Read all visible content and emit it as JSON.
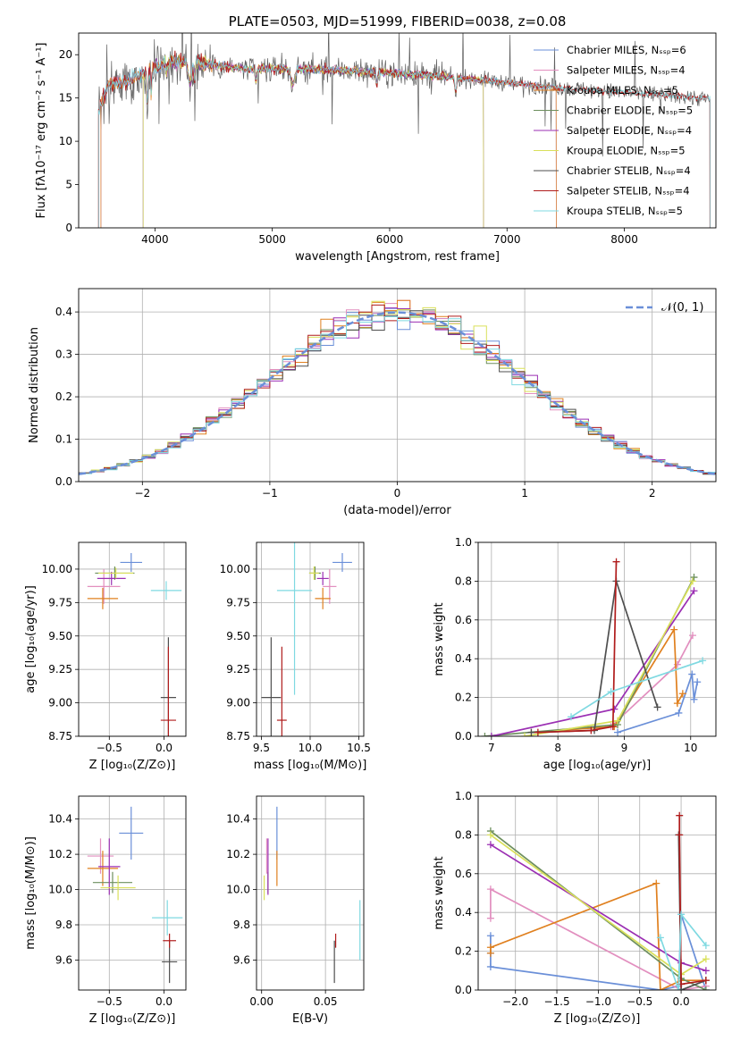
{
  "colors": {
    "series": [
      "#6a8fd8",
      "#e28fbf",
      "#e0801f",
      "#6d8f5e",
      "#9b2fb3",
      "#d9e05a",
      "#4f4f4f",
      "#b01c1c",
      "#7fd9e1"
    ],
    "grid": "#b0b0b0",
    "gauss": "#6a8fd8"
  },
  "chart_data": [
    {
      "id": "spectrum",
      "type": "line",
      "title": "PLATE=0503, MJD=51999, FIBERID=0038, z=0.08",
      "xlabel": "wavelength [Angstrom, rest frame]",
      "ylabel": "Flux [fλ10⁻¹⁷ erg cm⁻² s⁻¹ A⁻¹]",
      "xlim": [
        3350,
        8780
      ],
      "ylim": [
        0,
        22.5
      ],
      "xticks": [
        4000,
        5000,
        6000,
        7000,
        8000
      ],
      "yticks": [
        0,
        5,
        10,
        15,
        20
      ],
      "grid": false,
      "legend_position": "upper-right",
      "continuum_anchors": [
        [
          3520,
          13.2
        ],
        [
          3600,
          16.5
        ],
        [
          3800,
          17.2
        ],
        [
          3950,
          18.2
        ],
        [
          4100,
          19.2
        ],
        [
          4400,
          19.0
        ],
        [
          4800,
          18.3
        ],
        [
          5200,
          18.4
        ],
        [
          5600,
          18.2
        ],
        [
          6000,
          17.9
        ],
        [
          6400,
          17.5
        ],
        [
          6700,
          17.2
        ],
        [
          7200,
          16.5
        ],
        [
          7600,
          16.0
        ],
        [
          8000,
          15.6
        ],
        [
          8400,
          15.3
        ],
        [
          8730,
          14.9
        ]
      ],
      "series": [
        {
          "name": "Chabrier MILES, Nₛₛₚ=6",
          "x_range": [
            3540,
            7420
          ]
        },
        {
          "name": "Salpeter MILES, Nₛₛₚ=4",
          "x_range": [
            3540,
            7420
          ]
        },
        {
          "name": "Kroupa MILES, Nₛₛₚ=5",
          "x_range": [
            3540,
            7420
          ]
        },
        {
          "name": "Chabrier ELODIE, Nₛₛₚ=5",
          "x_range": [
            3900,
            6800
          ]
        },
        {
          "name": "Salpeter ELODIE, Nₛₛₚ=4",
          "x_range": [
            3900,
            6800
          ]
        },
        {
          "name": "Kroupa ELODIE, Nₛₛₚ=5",
          "x_range": [
            3900,
            6800
          ]
        },
        {
          "name": "Chabrier STELIB, Nₛₛₚ=4",
          "x_range": [
            3520,
            8730
          ]
        },
        {
          "name": "Salpeter STELIB, Nₛₛₚ=4",
          "x_range": [
            3520,
            8730
          ]
        },
        {
          "name": "Kroupa STELIB, Nₛₛₚ=5",
          "x_range": [
            3520,
            8730
          ]
        }
      ]
    },
    {
      "id": "residuals",
      "type": "histogram",
      "xlabel": "(data-model)/error",
      "ylabel": "Normed distribution",
      "xlim": [
        -2.5,
        2.5
      ],
      "ylim": [
        0,
        0.455
      ],
      "xticks": [
        -2,
        -1,
        0,
        1,
        2
      ],
      "yticks": [
        0.0,
        0.1,
        0.2,
        0.3,
        0.4
      ],
      "grid": true,
      "legend_position": "upper-right",
      "legend": "𝒩(0, 1)",
      "bin_width": 0.1,
      "bin_start": -2.5
    },
    {
      "id": "age-vs-Z",
      "type": "errorbar",
      "xlabel": "Z [log₁₀(Z/Z⊙)]",
      "ylabel": "age  [log₁₀(age/yr)]",
      "xlim": [
        -0.78,
        0.2
      ],
      "ylim": [
        8.75,
        10.2
      ],
      "xticks": [
        -0.5,
        0.0
      ],
      "yticks": [
        8.75,
        9.0,
        9.25,
        9.5,
        9.75,
        10.0
      ],
      "grid": true,
      "points": [
        {
          "series": 0,
          "x": -0.3,
          "y": 10.05,
          "xerr": 0.1,
          "yerr": 0.07
        },
        {
          "series": 1,
          "x": -0.55,
          "y": 9.87,
          "xerr": 0.15,
          "yerr": 0.13
        },
        {
          "series": 2,
          "x": -0.56,
          "y": 9.78,
          "xerr": 0.14,
          "yerr": 0.08
        },
        {
          "series": 3,
          "x": -0.45,
          "y": 9.97,
          "xerr": 0.18,
          "yerr": 0.05
        },
        {
          "series": 4,
          "x": -0.48,
          "y": 9.93,
          "xerr": 0.13,
          "yerr": 0.05
        },
        {
          "series": 5,
          "x": -0.44,
          "y": 9.97,
          "xerr": 0.16,
          "yerr": 0.04
        },
        {
          "series": 6,
          "x": 0.04,
          "y": 9.04,
          "xerr": 0.07,
          "yerr": 0.45
        },
        {
          "series": 7,
          "x": 0.04,
          "y": 8.87,
          "xerr": 0.07,
          "yerr": 0.55
        },
        {
          "series": 8,
          "x": 0.02,
          "y": 9.84,
          "xerr": 0.14,
          "yerr": 0.07
        }
      ]
    },
    {
      "id": "age-vs-mass",
      "type": "errorbar",
      "xlabel": "mass [log₁₀(M/M⊙)]",
      "ylabel": "",
      "xlim": [
        9.45,
        10.55
      ],
      "ylim": [
        8.75,
        10.2
      ],
      "xticks": [
        9.5,
        10.0,
        10.5
      ],
      "yticks": [
        8.75,
        9.0,
        9.25,
        9.5,
        9.75,
        10.0
      ],
      "grid": true,
      "points": [
        {
          "series": 0,
          "x": 10.33,
          "y": 10.05,
          "xerr": 0.1,
          "yerr": 0.07
        },
        {
          "series": 1,
          "x": 10.2,
          "y": 9.87,
          "xerr": 0.07,
          "yerr": 0.13
        },
        {
          "series": 2,
          "x": 10.13,
          "y": 9.78,
          "xerr": 0.08,
          "yerr": 0.08
        },
        {
          "series": 3,
          "x": 10.05,
          "y": 9.97,
          "xerr": 0.06,
          "yerr": 0.05
        },
        {
          "series": 4,
          "x": 10.13,
          "y": 9.93,
          "xerr": 0.06,
          "yerr": 0.05
        },
        {
          "series": 5,
          "x": 10.04,
          "y": 9.97,
          "xerr": 0.05,
          "yerr": 0.05
        },
        {
          "series": 6,
          "x": 9.6,
          "y": 9.04,
          "xerr": 0.1,
          "yerr": 0.45
        },
        {
          "series": 7,
          "x": 9.71,
          "y": 8.87,
          "xerr": 0.05,
          "yerr": 0.55
        },
        {
          "series": 8,
          "x": 9.84,
          "y": 9.84,
          "xerr": 0.18,
          "yerr": 0.78
        }
      ]
    },
    {
      "id": "weight-vs-age",
      "type": "line",
      "xlabel": "age  [log₁₀(age/yr)]",
      "ylabel": "mass weight",
      "xlim": [
        6.8,
        10.38
      ],
      "ylim": [
        0,
        1.0
      ],
      "xticks": [
        7,
        8,
        9,
        10
      ],
      "yticks": [
        0.0,
        0.2,
        0.4,
        0.6,
        0.8,
        1.0
      ],
      "grid": true,
      "series": [
        {
          "series": 0,
          "points": [
            [
              8.9,
              0.02
            ],
            [
              9.82,
              0.12
            ],
            [
              10.02,
              0.32
            ],
            [
              10.05,
              0.19
            ],
            [
              10.1,
              0.28
            ]
          ]
        },
        {
          "series": 1,
          "points": [
            [
              8.8,
              0.05
            ],
            [
              9.8,
              0.37
            ],
            [
              10.03,
              0.52
            ]
          ]
        },
        {
          "series": 2,
          "points": [
            [
              7.6,
              0.02
            ],
            [
              8.85,
              0.05
            ],
            [
              9.75,
              0.55
            ],
            [
              9.8,
              0.17
            ],
            [
              9.88,
              0.22
            ]
          ]
        },
        {
          "series": 3,
          "points": [
            [
              6.9,
              0.0
            ],
            [
              8.9,
              0.06
            ],
            [
              10.05,
              0.82
            ]
          ]
        },
        {
          "series": 4,
          "points": [
            [
              7.0,
              0.0
            ],
            [
              8.85,
              0.14
            ],
            [
              10.05,
              0.75
            ]
          ]
        },
        {
          "series": 5,
          "points": [
            [
              7.5,
              0.0
            ],
            [
              8.9,
              0.08
            ],
            [
              10.03,
              0.8
            ]
          ]
        },
        {
          "series": 6,
          "points": [
            [
              7.6,
              0.02
            ],
            [
              8.55,
              0.03
            ],
            [
              8.88,
              0.8
            ],
            [
              9.5,
              0.15
            ]
          ]
        },
        {
          "series": 7,
          "points": [
            [
              7.7,
              0.02
            ],
            [
              8.5,
              0.03
            ],
            [
              8.83,
              0.05
            ],
            [
              8.88,
              0.9
            ]
          ]
        },
        {
          "series": 8,
          "points": [
            [
              8.2,
              0.1
            ],
            [
              8.8,
              0.23
            ],
            [
              10.18,
              0.39
            ]
          ]
        }
      ]
    },
    {
      "id": "mass-vs-Z",
      "type": "errorbar",
      "xlabel": "Z [log₁₀(Z/Z⊙)]",
      "ylabel": "mass [log₁₀(M/M⊙)]",
      "xlim": [
        -0.78,
        0.2
      ],
      "ylim": [
        9.43,
        10.53
      ],
      "xticks": [
        -0.5,
        0.0
      ],
      "yticks": [
        9.6,
        9.8,
        10.0,
        10.2,
        10.4
      ],
      "grid": true,
      "points": [
        {
          "series": 0,
          "x": -0.3,
          "y": 10.32,
          "xerr": 0.11,
          "yerr": 0.15
        },
        {
          "series": 1,
          "x": -0.58,
          "y": 10.19,
          "xerr": 0.12,
          "yerr": 0.1
        },
        {
          "series": 2,
          "x": -0.56,
          "y": 10.12,
          "xerr": 0.14,
          "yerr": 0.1
        },
        {
          "series": 3,
          "x": -0.47,
          "y": 10.04,
          "xerr": 0.18,
          "yerr": 0.06
        },
        {
          "series": 4,
          "x": -0.5,
          "y": 10.13,
          "xerr": 0.1,
          "yerr": 0.16
        },
        {
          "series": 5,
          "x": -0.42,
          "y": 10.01,
          "xerr": 0.16,
          "yerr": 0.07
        },
        {
          "series": 6,
          "x": 0.05,
          "y": 9.59,
          "xerr": 0.07,
          "yerr": 0.12
        },
        {
          "series": 7,
          "x": 0.05,
          "y": 9.71,
          "xerr": 0.06,
          "yerr": 0.04
        },
        {
          "series": 8,
          "x": 0.03,
          "y": 9.84,
          "xerr": 0.14,
          "yerr": 0.1
        }
      ]
    },
    {
      "id": "mass-vs-EBV",
      "type": "errorbar",
      "xlabel": "E(B-V)",
      "ylabel": "",
      "xlim": [
        -0.004,
        0.08
      ],
      "ylim": [
        9.43,
        10.53
      ],
      "xticks": [
        0.0,
        0.05
      ],
      "yticks": [
        9.6,
        9.8,
        10.0,
        10.2,
        10.4
      ],
      "grid": true,
      "points": [
        {
          "series": 0,
          "x": 0.012,
          "y": 10.32,
          "xerr": 0,
          "yerr": 0.15
        },
        {
          "series": 1,
          "x": 0.004,
          "y": 10.19,
          "xerr": 0,
          "yerr": 0.1
        },
        {
          "series": 2,
          "x": 0.012,
          "y": 10.12,
          "xerr": 0,
          "yerr": 0.1
        },
        {
          "series": 3,
          "x": 0.005,
          "y": 10.04,
          "xerr": 0,
          "yerr": 0.06
        },
        {
          "series": 4,
          "x": 0.005,
          "y": 10.13,
          "xerr": 0,
          "yerr": 0.16
        },
        {
          "series": 5,
          "x": 0.002,
          "y": 10.01,
          "xerr": 0,
          "yerr": 0.07
        },
        {
          "series": 6,
          "x": 0.057,
          "y": 9.59,
          "xerr": 0,
          "yerr": 0.12
        },
        {
          "series": 7,
          "x": 0.058,
          "y": 9.71,
          "xerr": 0,
          "yerr": 0.04
        },
        {
          "series": 8,
          "x": 0.077,
          "y": 9.77,
          "xerr": 0,
          "yerr": 0.17
        }
      ]
    },
    {
      "id": "weight-vs-Z",
      "type": "line",
      "xlabel": "Z [log₁₀(Z/Z⊙)]",
      "ylabel": "mass weight",
      "xlim": [
        -2.45,
        0.42
      ],
      "ylim": [
        0,
        1.0
      ],
      "xticks": [
        -2.0,
        -1.5,
        -1.0,
        -0.5,
        0.0
      ],
      "yticks": [
        0.0,
        0.2,
        0.4,
        0.6,
        0.8,
        1.0
      ],
      "grid": true,
      "series": [
        {
          "series": 0,
          "points": [
            [
              -2.3,
              0.19
            ],
            [
              -2.3,
              0.28
            ],
            [
              -2.3,
              0.12
            ],
            [
              -0.25,
              0.0
            ],
            [
              -0.03,
              0.02
            ],
            [
              0.0,
              0.39
            ],
            [
              0.3,
              0.0
            ]
          ]
        },
        {
          "series": 1,
          "points": [
            [
              -2.3,
              0.37
            ],
            [
              -2.3,
              0.52
            ],
            [
              0.0,
              0.0
            ],
            [
              0.3,
              0.02
            ]
          ]
        },
        {
          "series": 2,
          "points": [
            [
              -2.3,
              0.19
            ],
            [
              -2.3,
              0.22
            ],
            [
              -0.3,
              0.55
            ],
            [
              -0.25,
              0.0
            ],
            [
              0.0,
              0.05
            ],
            [
              0.3,
              0.05
            ]
          ]
        },
        {
          "series": 3,
          "points": [
            [
              -2.3,
              0.82
            ],
            [
              0.0,
              0.06
            ],
            [
              0.3,
              0.0
            ]
          ]
        },
        {
          "series": 4,
          "points": [
            [
              -2.3,
              0.75
            ],
            [
              0.0,
              0.14
            ],
            [
              0.3,
              0.1
            ]
          ]
        },
        {
          "series": 5,
          "points": [
            [
              -2.3,
              0.8
            ],
            [
              0.0,
              0.08
            ],
            [
              0.3,
              0.16
            ]
          ]
        },
        {
          "series": 6,
          "points": [
            [
              -0.03,
              0.8
            ],
            [
              0.0,
              0.0
            ],
            [
              0.3,
              0.05
            ]
          ]
        },
        {
          "series": 7,
          "points": [
            [
              -0.02,
              0.9
            ],
            [
              -0.02,
              0.8
            ],
            [
              0.0,
              0.03
            ],
            [
              0.3,
              0.05
            ]
          ]
        },
        {
          "series": 8,
          "points": [
            [
              -0.25,
              0.27
            ],
            [
              -0.03,
              0.0
            ],
            [
              0.0,
              0.39
            ],
            [
              0.3,
              0.23
            ]
          ]
        }
      ]
    }
  ]
}
